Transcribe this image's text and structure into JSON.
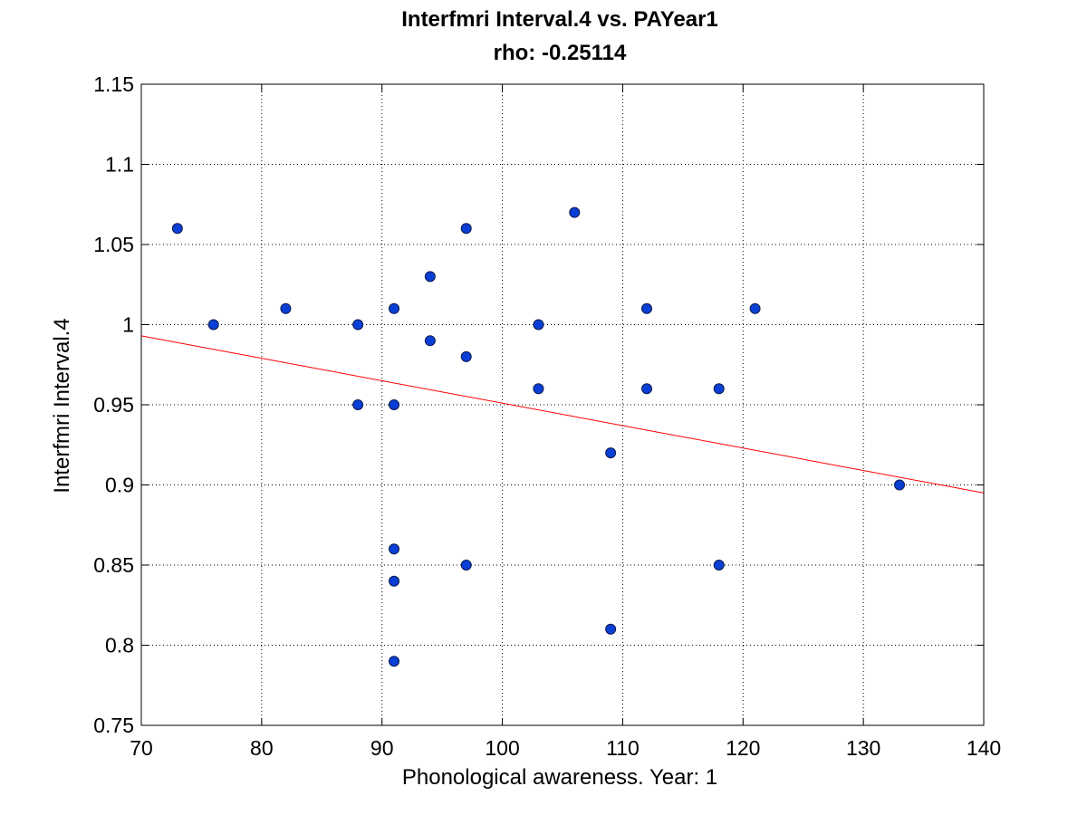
{
  "chart_data": {
    "type": "scatter",
    "title": "Interfmri Interval.4 vs. PAYear1",
    "subtitle": "rho: -0.25114",
    "xlabel": "Phonological awareness. Year: 1",
    "ylabel": "Interfmri Interval.4",
    "xlim": [
      70,
      140
    ],
    "ylim": [
      0.75,
      1.15
    ],
    "xticks": [
      70,
      80,
      90,
      100,
      110,
      120,
      130,
      140
    ],
    "xtick_labels": [
      "70",
      "80",
      "90",
      "100",
      "110",
      "120",
      "130",
      "140"
    ],
    "yticks": [
      0.75,
      0.8,
      0.85,
      0.9,
      0.95,
      1,
      1.05,
      1.1,
      1.15
    ],
    "ytick_labels": [
      "0.75",
      "0.8",
      "0.85",
      "0.9",
      "0.95",
      "1",
      "1.05",
      "1.1",
      "1.15"
    ],
    "grid": true,
    "points": [
      {
        "x": 73,
        "y": 1.06
      },
      {
        "x": 76,
        "y": 1.0
      },
      {
        "x": 82,
        "y": 1.01
      },
      {
        "x": 88,
        "y": 1.0
      },
      {
        "x": 88,
        "y": 0.95
      },
      {
        "x": 91,
        "y": 1.01
      },
      {
        "x": 91,
        "y": 0.95
      },
      {
        "x": 91,
        "y": 0.86
      },
      {
        "x": 91,
        "y": 0.84
      },
      {
        "x": 91,
        "y": 0.79
      },
      {
        "x": 94,
        "y": 1.03
      },
      {
        "x": 94,
        "y": 0.99
      },
      {
        "x": 97,
        "y": 1.06
      },
      {
        "x": 97,
        "y": 0.98
      },
      {
        "x": 97,
        "y": 0.85
      },
      {
        "x": 103,
        "y": 1.0
      },
      {
        "x": 103,
        "y": 0.96
      },
      {
        "x": 106,
        "y": 1.07
      },
      {
        "x": 109,
        "y": 0.92
      },
      {
        "x": 109,
        "y": 0.81
      },
      {
        "x": 112,
        "y": 1.01
      },
      {
        "x": 112,
        "y": 0.96
      },
      {
        "x": 118,
        "y": 0.96
      },
      {
        "x": 118,
        "y": 0.85
      },
      {
        "x": 121,
        "y": 1.01
      },
      {
        "x": 133,
        "y": 0.9
      }
    ],
    "fit_line": {
      "x": [
        70,
        140
      ],
      "y": [
        0.993,
        0.895
      ]
    },
    "colors": {
      "marker_fill": "#0a3fd6",
      "marker_edge": "#0a1a4a",
      "fit_line": "#ff0000"
    }
  }
}
